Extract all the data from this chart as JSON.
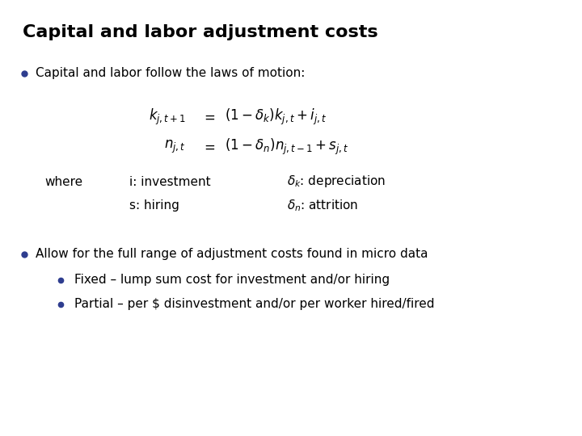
{
  "title": "Capital and labor adjustment costs",
  "title_fontsize": 16,
  "bg_color": "#ffffff",
  "text_color": "#000000",
  "bullet_color": "#2e3d8f",
  "bullet1": "Capital and labor follow the laws of motion:",
  "eq1_lhs": "$k_{j,t+1}$",
  "eq1_eq": "$=$",
  "eq1_rhs": "$(1-\\delta_k)k_{j,t} + i_{j,t}$",
  "eq2_lhs": "$n_{j,t}$",
  "eq2_eq": "$=$",
  "eq2_rhs": "$(1-\\delta_n)n_{j,t-1} + s_{j,t}$",
  "where_label": "where",
  "col1_row1": "i: investment",
  "col1_row2": "s: hiring",
  "col2_row1": "$\\delta_k$: depreciation",
  "col2_row2": "$\\delta_n$: attrition",
  "bullet2": "Allow for the full range of adjustment costs found in micro data",
  "sub_bullet1": "Fixed – lump sum cost for investment and/or hiring",
  "sub_bullet2": "Partial – per $ disinvestment and/or per worker hired/fired",
  "body_fontsize": 11,
  "eq_fontsize": 11,
  "sub_fontsize": 11
}
